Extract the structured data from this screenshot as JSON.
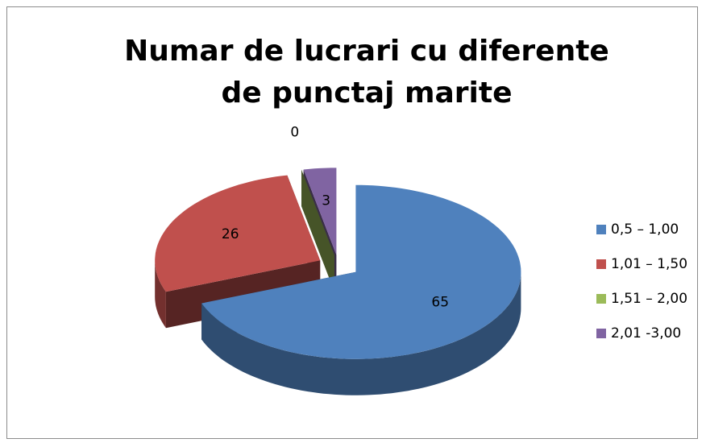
{
  "chart_data": {
    "type": "pie3d",
    "title": "Numar de lucrari cu diferente de punctaj marite",
    "categories": [
      "0,5 – 1,00",
      "1,01 – 1,50",
      "1,51 – 2,00",
      "2,01 -3,00"
    ],
    "values": [
      65,
      26,
      0,
      3
    ],
    "colors": [
      "#4f81bd",
      "#c0504d",
      "#9bbb59",
      "#8064a2"
    ],
    "legend": "right"
  }
}
